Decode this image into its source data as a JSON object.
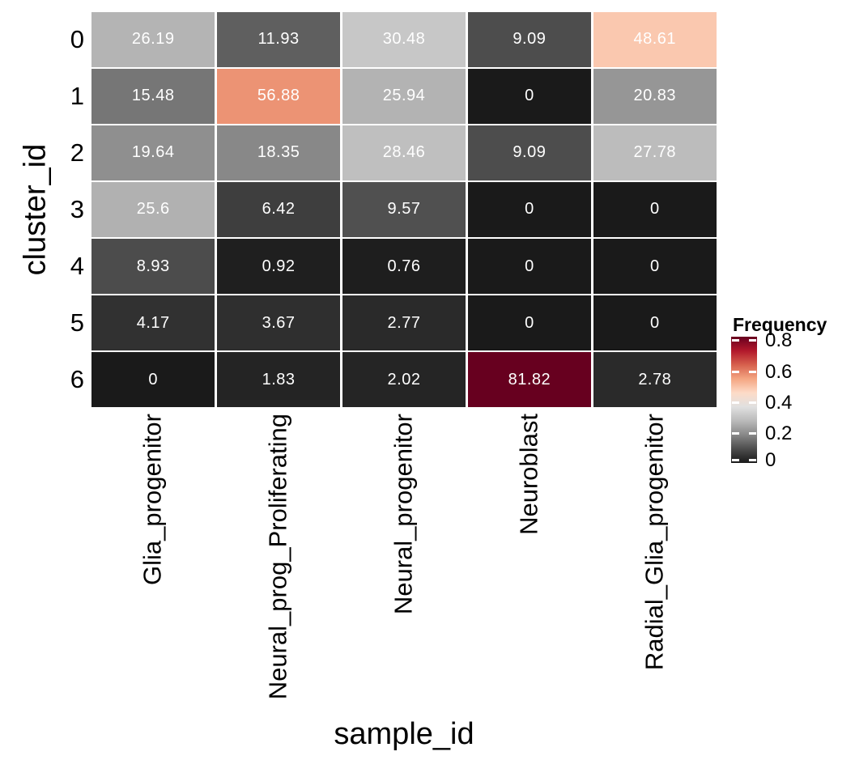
{
  "chart_data": {
    "type": "heatmap",
    "title": "",
    "xlabel": "sample_id",
    "ylabel": "cluster_id",
    "rows": [
      "0",
      "1",
      "2",
      "3",
      "4",
      "5",
      "6"
    ],
    "columns": [
      "Glia_progenitor",
      "Neural_prog_Proliferating",
      "Neural_progenitor",
      "Neuroblast",
      "Radial_Glia_progenitor"
    ],
    "values": [
      [
        26.19,
        11.93,
        30.48,
        9.09,
        48.61
      ],
      [
        15.48,
        56.88,
        25.94,
        0,
        20.83
      ],
      [
        19.64,
        18.35,
        28.46,
        9.09,
        27.78
      ],
      [
        25.6,
        6.42,
        9.57,
        0,
        0
      ],
      [
        8.93,
        0.92,
        0.76,
        0,
        0
      ],
      [
        4.17,
        3.67,
        2.77,
        0,
        0
      ],
      [
        0,
        1.83,
        2.02,
        81.82,
        2.78
      ]
    ],
    "colormap": {
      "name": "reversed RdGy (black-gray-white-salmon-darkred)",
      "palette": [
        "#1a1a1a",
        "#4d4d4d",
        "#878787",
        "#bababa",
        "#e0e0e0",
        "#fddbc7",
        "#f4a582",
        "#d6604d",
        "#b2182b",
        "#67001f"
      ],
      "domain": [
        0,
        81.82
      ]
    },
    "legend": {
      "title": "Frequency",
      "position": "right",
      "range": [
        0,
        0.8182
      ],
      "tick_values": [
        0.8,
        0.6,
        0.4,
        0.2,
        0
      ],
      "tick_labels": [
        "0.8",
        "0.6",
        "0.4",
        "0.2",
        "0"
      ]
    },
    "grid_on": true,
    "grid_line_color": "#ffffff",
    "cell_text_color": "#ffffff",
    "axis_text_color": "#000000",
    "background": "#ffffff"
  }
}
